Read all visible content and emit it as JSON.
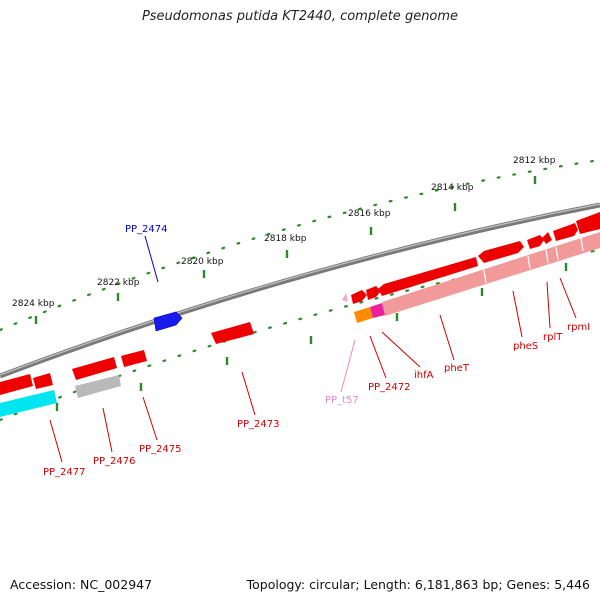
{
  "title": "Pseudomonas putida KT2440, complete genome",
  "footer": {
    "accession": "Accession: NC_002947",
    "summary": "Topology: circular; Length: 6,181,863 bp; Genes: 5,446"
  },
  "colors": {
    "backbone": "#8a8a8a",
    "gene_red": "#ee0000",
    "gene_pink": "#f29a9a",
    "gene_blue": "#1a1aee",
    "gene_cyan": "#00e5f0",
    "gene_gray": "#b9b9b9",
    "gene_orange": "#ff8c00",
    "gene_magenta": "#ee1f9f",
    "trna_pink": "#f5a8d4",
    "tick_green": "#2c8a2c",
    "label_red": "#cc0000",
    "label_blue": "#0000cc",
    "label_pink": "#e58ac0"
  },
  "scale": {
    "unit": "kbp",
    "ticks": [
      {
        "label": "2812 kbp"
      },
      {
        "label": "2814 kbp"
      },
      {
        "label": "2816 kbp"
      },
      {
        "label": "2818 kbp"
      },
      {
        "label": "2820 kbp"
      },
      {
        "label": "2822 kbp"
      },
      {
        "label": "2824 kbp"
      }
    ]
  },
  "gene_labels": [
    {
      "name": "PP_2474"
    },
    {
      "name": "PP_2477"
    },
    {
      "name": "PP_2476"
    },
    {
      "name": "PP_2475"
    },
    {
      "name": "PP_2473"
    },
    {
      "name": "PP_t57"
    },
    {
      "name": "PP_2472"
    },
    {
      "name": "ihfA"
    },
    {
      "name": "pheT"
    },
    {
      "name": "pheS"
    },
    {
      "name": "rplT"
    },
    {
      "name": "rpmI"
    }
  ]
}
